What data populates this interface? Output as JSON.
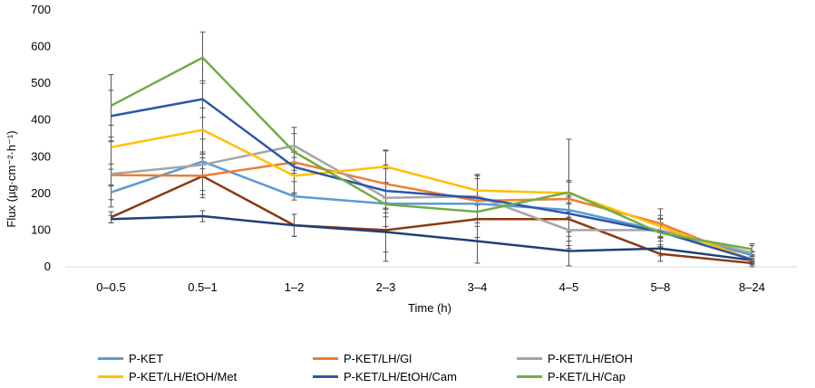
{
  "chart_data": {
    "type": "line",
    "title": "",
    "xlabel": "Time (h)",
    "ylabel": "Flux (µg·cm⁻²·h⁻¹)",
    "ylim": [
      0,
      700
    ],
    "yticks": [
      0,
      100,
      200,
      300,
      400,
      500,
      600,
      700
    ],
    "categories": [
      "0–0.5",
      "0.5–1",
      "1–2",
      "2–3",
      "3–4",
      "4–5",
      "5–8",
      "8–24"
    ],
    "grid": false,
    "legend_position": "bottom",
    "series": [
      {
        "name": "P-KET",
        "color": "#5B9BD5",
        "values": [
          203,
          287,
          192,
          172,
          172,
          155,
          98,
          32
        ],
        "errors": [
          20,
          20,
          10,
          15,
          20,
          20,
          15,
          10
        ]
      },
      {
        "name": "P-KET/LH/Gl",
        "color": "#ED7D31",
        "values": [
          250,
          248,
          285,
          226,
          180,
          185,
          118,
          18
        ],
        "errors": [
          30,
          60,
          30,
          90,
          60,
          50,
          40,
          10
        ]
      },
      {
        "name": "P-KET/LH/EtOH",
        "color": "#A5A5A5",
        "values": [
          253,
          278,
          330,
          188,
          192,
          100,
          100,
          38
        ],
        "errors": [
          90,
          70,
          50,
          90,
          60,
          50,
          20,
          20
        ]
      },
      {
        "name": "P-KET/LH/EtOH/Met",
        "color": "#FFC000",
        "values": [
          326,
          373,
          248,
          273,
          208,
          201,
          110,
          20
        ],
        "errors": [
          60,
          60,
          50,
          45,
          40,
          30,
          30,
          10
        ]
      },
      {
        "name": "P-KET/LH/EtOH/Cam",
        "color": "#2E56A8",
        "values": [
          411,
          457,
          272,
          207,
          188,
          145,
          95,
          20
        ],
        "errors": [
          70,
          50,
          40,
          60,
          60,
          50,
          35,
          20
        ]
      },
      {
        "name": "P-KET/LH/Cap",
        "color": "#70AD47",
        "values": [
          439,
          570,
          313,
          170,
          150,
          203,
          92,
          48
        ],
        "errors": [
          85,
          70,
          50,
          60,
          40,
          145,
          40,
          15
        ]
      },
      {
        "name": "",
        "color": "#8B3A0E",
        "values": [
          135,
          247,
          113,
          100,
          130,
          130,
          35,
          10
        ],
        "errors": [
          15,
          50,
          30,
          60,
          50,
          60,
          20,
          5
        ]
      },
      {
        "name": "",
        "color": "#1F3F77",
        "values": [
          130,
          138,
          113,
          95,
          70,
          43,
          50,
          18
        ],
        "errors": [
          10,
          15,
          30,
          80,
          60,
          40,
          20,
          5
        ]
      }
    ],
    "legend": [
      "P-KET",
      "P-KET/LH/Gl",
      "P-KET/LH/EtOH",
      "P-KET/LH/EtOH/Met",
      "P-KET/LH/EtOH/Cam",
      "P-KET/LH/Cap"
    ]
  }
}
